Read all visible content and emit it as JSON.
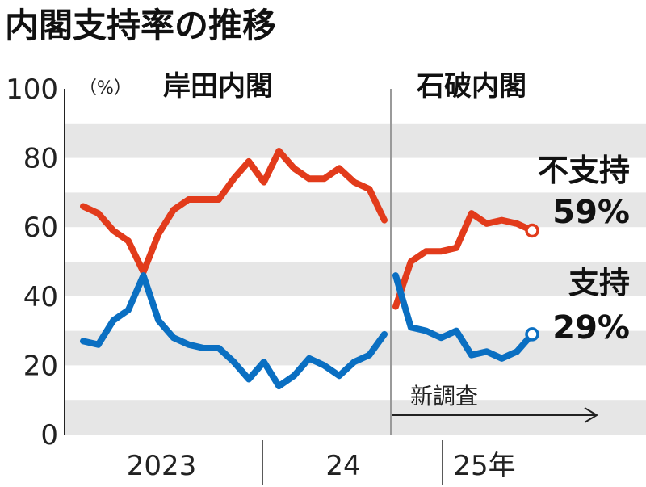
{
  "chart_data": {
    "type": "line",
    "title": "内閣支持率の推移",
    "unit": "（%）",
    "ylim": [
      0,
      100
    ],
    "yticks": [
      0,
      20,
      40,
      60,
      80,
      100
    ],
    "grid": "alternating horizontal bands",
    "periods": [
      {
        "label": "岸田内閣"
      },
      {
        "label": "石破内閣"
      }
    ],
    "x_tick_labels": [
      "2023",
      "24",
      "25年"
    ],
    "annotation": "新調査",
    "series": [
      {
        "name": "不支持",
        "label_value": "59%",
        "color": "#e23b1b",
        "segments": [
          {
            "period": "岸田内閣",
            "values": [
              66,
              64,
              59,
              56,
              47,
              58,
              65,
              68,
              68,
              68,
              74,
              79,
              73,
              82,
              77,
              74,
              74,
              77,
              73,
              71,
              62
            ]
          },
          {
            "period": "石破内閣",
            "values": [
              37,
              50,
              53,
              53,
              54,
              64,
              61,
              62,
              61,
              59
            ]
          }
        ]
      },
      {
        "name": "支持",
        "label_value": "29%",
        "color": "#0a6fc2",
        "segments": [
          {
            "period": "岸田内閣",
            "values": [
              27,
              26,
              33,
              36,
              46,
              33,
              28,
              26,
              25,
              25,
              21,
              16,
              21,
              14,
              17,
              22,
              20,
              17,
              21,
              23,
              29
            ]
          },
          {
            "period": "石破内閣",
            "values": [
              46,
              31,
              30,
              28,
              30,
              23,
              24,
              22,
              24,
              29
            ]
          }
        ]
      }
    ]
  }
}
